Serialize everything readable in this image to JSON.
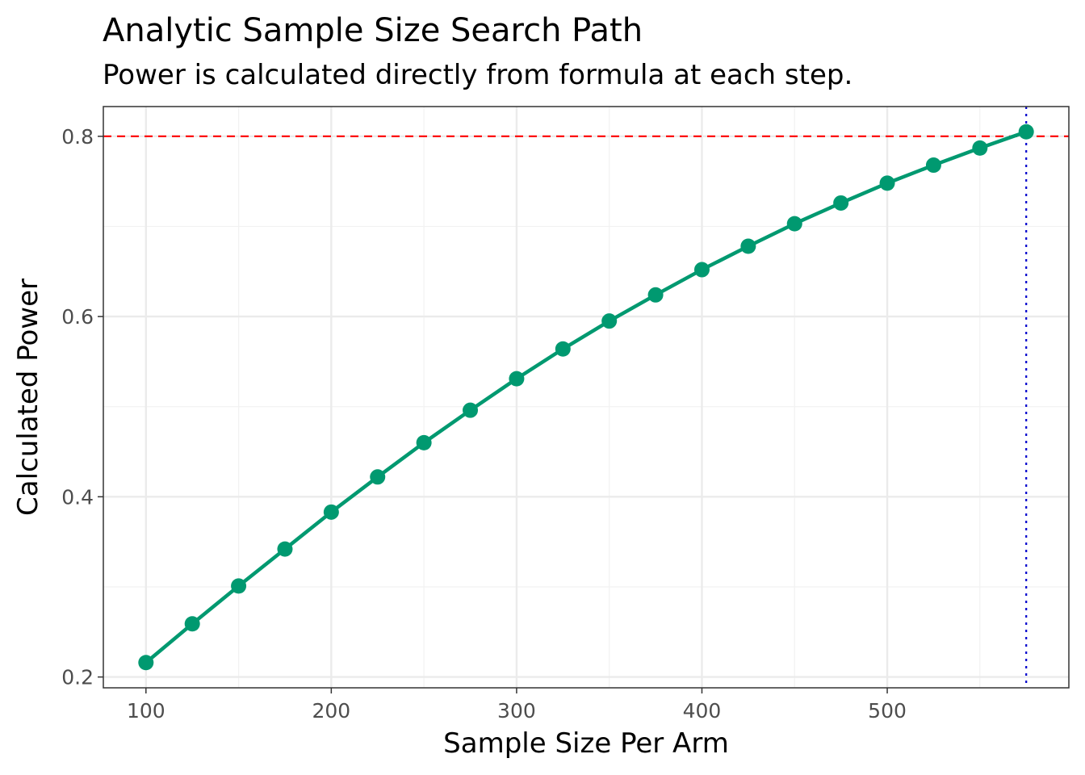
{
  "chart_data": {
    "type": "line",
    "title": "Analytic Sample Size Search Path",
    "subtitle": "Power is calculated directly from formula at each step.",
    "xlabel": "Sample Size Per Arm",
    "ylabel": "Calculated Power",
    "xlim": [
      77,
      598
    ],
    "ylim": [
      0.188,
      0.833
    ],
    "x_ticks": [
      100,
      200,
      300,
      400,
      500
    ],
    "x_minor_ticks": [
      150,
      250,
      350,
      450,
      550
    ],
    "y_ticks": [
      0.2,
      0.4,
      0.6,
      0.8
    ],
    "y_minor_ticks": [
      0.3,
      0.5,
      0.7
    ],
    "y_tick_labels": [
      "0.2",
      "0.4",
      "0.6",
      "0.8"
    ],
    "grid": true,
    "series": [
      {
        "color": "#009970",
        "x": [
          100,
          125,
          150,
          175,
          200,
          225,
          250,
          275,
          300,
          325,
          350,
          375,
          400,
          425,
          450,
          475,
          500,
          525,
          550,
          575
        ],
        "y": [
          0.216,
          0.259,
          0.301,
          0.342,
          0.383,
          0.422,
          0.46,
          0.496,
          0.531,
          0.564,
          0.595,
          0.624,
          0.652,
          0.678,
          0.703,
          0.726,
          0.748,
          0.768,
          0.787,
          0.805
        ]
      }
    ],
    "reference_lines": [
      {
        "orientation": "horizontal",
        "value": 0.8,
        "color": "#ff0000",
        "style": "dashed"
      },
      {
        "orientation": "vertical",
        "value": 575,
        "color": "#0000cc",
        "style": "dotted"
      }
    ]
  }
}
